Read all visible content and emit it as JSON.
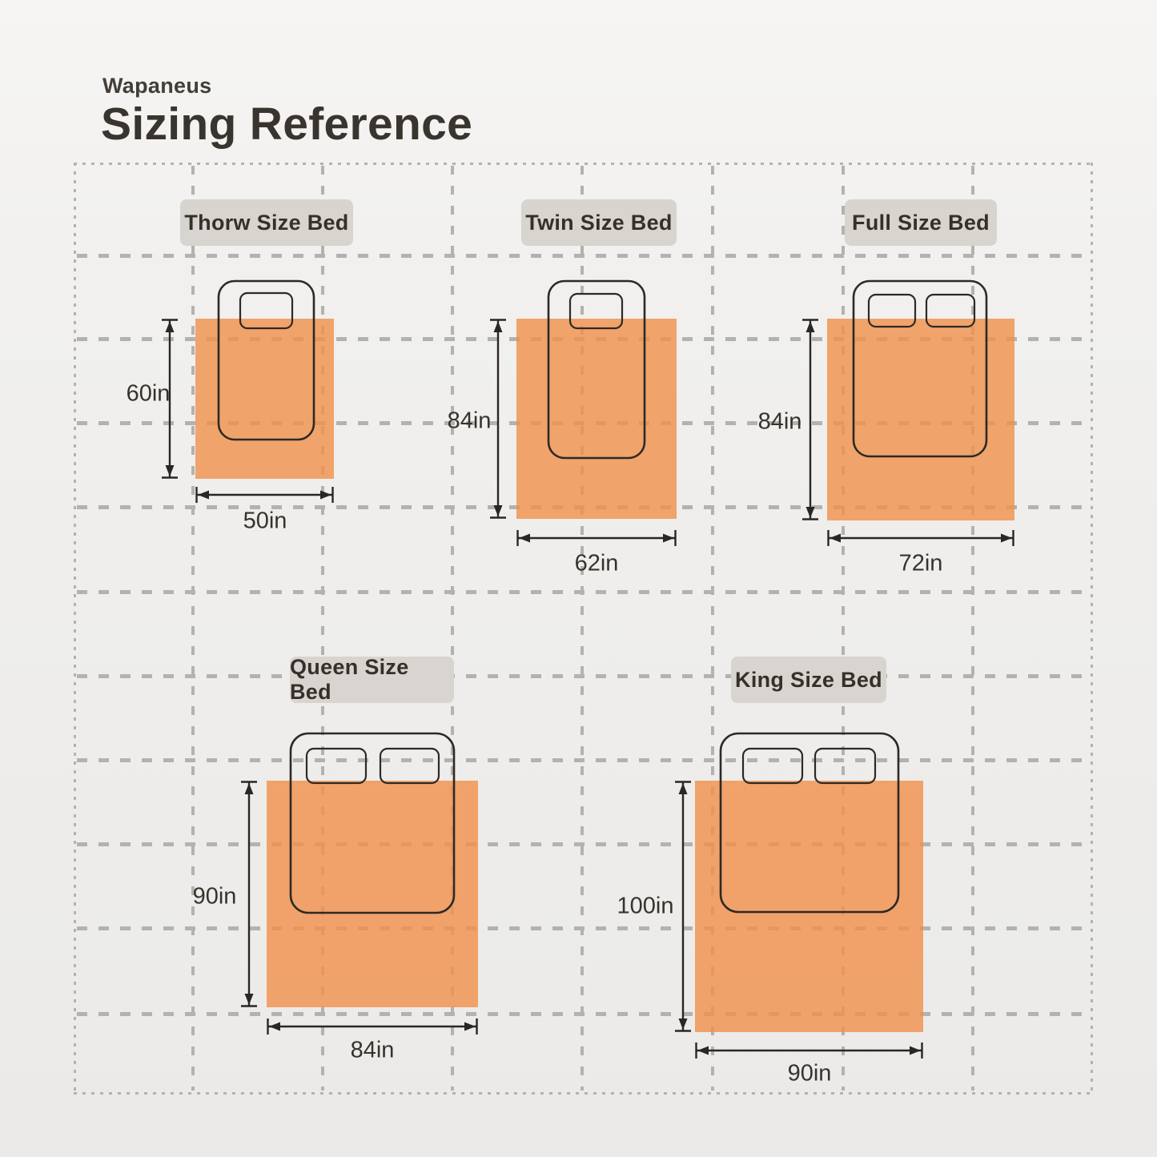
{
  "header": {
    "brand": "Wapaneus",
    "title": "Sizing Reference"
  },
  "colors": {
    "blanket": "#F0904A",
    "grid": "#b4b2ae",
    "label_bg": "#D8D4CF",
    "ink": "#2E2925",
    "text": "#38322C"
  },
  "figures": [
    {
      "name": "throw",
      "label": "Thorw Size Bed",
      "height_label": "60in",
      "width_label": "50in",
      "height_in": 60,
      "width_in": 50,
      "pillows": 1
    },
    {
      "name": "twin",
      "label": "Twin Size Bed",
      "height_label": "84in",
      "width_label": "62in",
      "height_in": 84,
      "width_in": 62,
      "pillows": 1
    },
    {
      "name": "full",
      "label": "Full Size Bed",
      "height_label": "84in",
      "width_label": "72in",
      "height_in": 84,
      "width_in": 72,
      "pillows": 2
    },
    {
      "name": "queen",
      "label": "Queen Size Bed",
      "height_label": "90in",
      "width_label": "84in",
      "height_in": 90,
      "width_in": 84,
      "pillows": 2
    },
    {
      "name": "king",
      "label": "King Size Bed",
      "height_label": "100in",
      "width_label": "90in",
      "height_in": 100,
      "width_in": 90,
      "pillows": 2
    }
  ]
}
